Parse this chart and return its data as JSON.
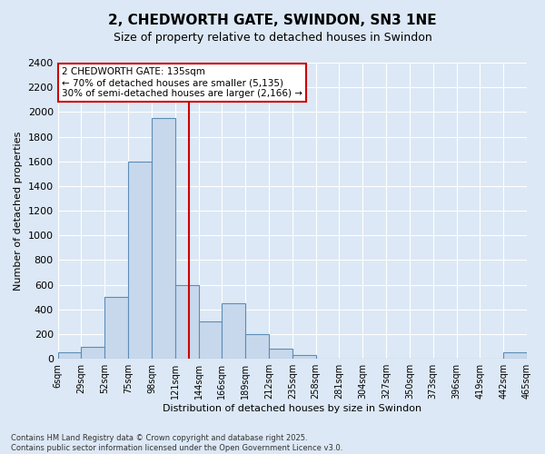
{
  "title": "2, CHEDWORTH GATE, SWINDON, SN3 1NE",
  "subtitle": "Size of property relative to detached houses in Swindon",
  "xlabel": "Distribution of detached houses by size in Swindon",
  "ylabel": "Number of detached properties",
  "property_size": 135,
  "vline_color": "#cc0000",
  "bar_color": "#c8d8ec",
  "bar_edge_color": "#5b8db8",
  "annotation_line1": "2 CHEDWORTH GATE: 135sqm",
  "annotation_line2": "← 70% of detached houses are smaller (5,135)",
  "annotation_line3": "30% of semi-detached houses are larger (2,166) →",
  "annotation_box_color": "#cc0000",
  "footer_line1": "Contains HM Land Registry data © Crown copyright and database right 2025.",
  "footer_line2": "Contains public sector information licensed under the Open Government Licence v3.0.",
  "bin_edges": [
    6,
    29,
    52,
    75,
    98,
    121,
    144,
    167,
    190,
    213,
    236,
    259,
    282,
    305,
    328,
    351,
    374,
    397,
    420,
    443,
    466
  ],
  "bin_counts": [
    50,
    100,
    500,
    1600,
    1950,
    600,
    300,
    450,
    200,
    80,
    30,
    0,
    0,
    0,
    0,
    0,
    0,
    0,
    0,
    50
  ],
  "ylim": [
    0,
    2400
  ],
  "background_color": "#dce8f5",
  "grid_color": "#ffffff",
  "fig_background": "#dce8f5",
  "title_fontsize": 11,
  "subtitle_fontsize": 9,
  "tick_label_fontsize": 7,
  "ylabel_fontsize": 8,
  "xlabel_fontsize": 8,
  "footer_fontsize": 6
}
